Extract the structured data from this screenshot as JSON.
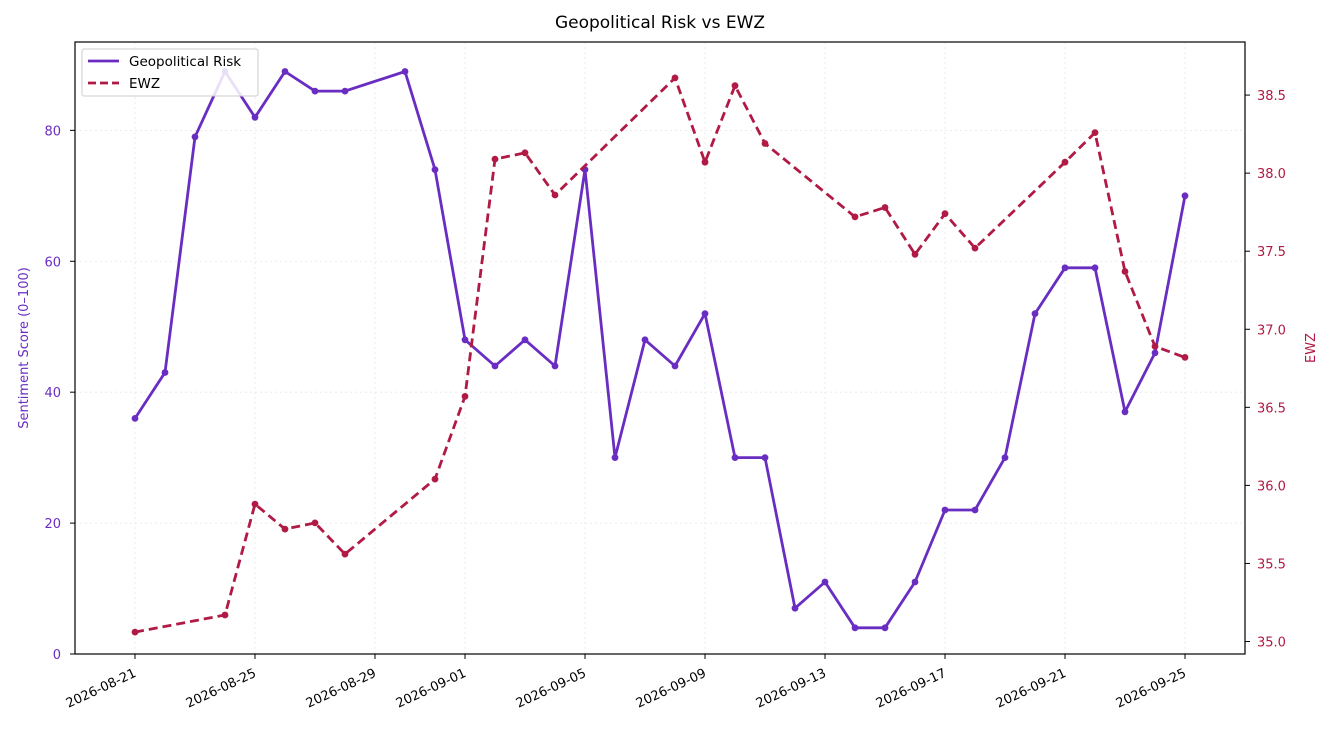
{
  "chart_data": {
    "type": "line",
    "title": "Geopolitical Risk vs EWZ",
    "xlabel": "",
    "x": [
      "2026-08-21",
      "2026-08-22",
      "2026-08-23",
      "2026-08-24",
      "2026-08-25",
      "2026-08-26",
      "2026-08-27",
      "2026-08-28",
      "2026-08-30",
      "2026-08-31",
      "2026-09-01",
      "2026-09-02",
      "2026-09-03",
      "2026-09-04",
      "2026-09-05",
      "2026-09-06",
      "2026-09-07",
      "2026-09-08",
      "2026-09-09",
      "2026-09-10",
      "2026-09-11",
      "2026-09-12",
      "2026-09-13",
      "2026-09-14",
      "2026-09-15",
      "2026-09-16",
      "2026-09-17",
      "2026-09-18",
      "2026-09-19",
      "2026-09-20",
      "2026-09-21",
      "2026-09-22",
      "2026-09-23",
      "2026-09-24",
      "2026-09-25"
    ],
    "x_ticks": [
      "2026-08-21",
      "2026-08-25",
      "2026-08-29",
      "2026-09-01",
      "2026-09-05",
      "2026-09-09",
      "2026-09-13",
      "2026-09-17",
      "2026-09-21",
      "2026-09-25"
    ],
    "x_range": [
      "2026-08-19",
      "2026-09-27"
    ],
    "series": [
      {
        "name": "Geopolitical Risk",
        "axis": "left",
        "color": "#6a2dc2",
        "style": "solid",
        "x": [
          "2026-08-21",
          "2026-08-22",
          "2026-08-23",
          "2026-08-24",
          "2026-08-25",
          "2026-08-26",
          "2026-08-27",
          "2026-08-28",
          "2026-08-30",
          "2026-08-31",
          "2026-09-01",
          "2026-09-02",
          "2026-09-03",
          "2026-09-04",
          "2026-09-05",
          "2026-09-06",
          "2026-09-07",
          "2026-09-08",
          "2026-09-09",
          "2026-09-10",
          "2026-09-11",
          "2026-09-12",
          "2026-09-13",
          "2026-09-14",
          "2026-09-15",
          "2026-09-16",
          "2026-09-17",
          "2026-09-18",
          "2026-09-19",
          "2026-09-20",
          "2026-09-21",
          "2026-09-22",
          "2026-09-23",
          "2026-09-24",
          "2026-09-25"
        ],
        "values": [
          36,
          43,
          79,
          89,
          82,
          89,
          86,
          86,
          89,
          74,
          48,
          44,
          48,
          44,
          74,
          30,
          48,
          44,
          52,
          30,
          30,
          7,
          11,
          4,
          4,
          11,
          22,
          22,
          30,
          52,
          59,
          59,
          37,
          46,
          70
        ]
      },
      {
        "name": "EWZ",
        "axis": "right",
        "color": "#b01a44",
        "style": "dashed",
        "x": [
          "2026-08-21",
          "2026-08-24",
          "2026-08-25",
          "2026-08-26",
          "2026-08-27",
          "2026-08-28",
          "2026-08-31",
          "2026-09-01",
          "2026-09-02",
          "2026-09-03",
          "2026-09-04",
          "2026-09-08",
          "2026-09-09",
          "2026-09-10",
          "2026-09-11",
          "2026-09-14",
          "2026-09-15",
          "2026-09-16",
          "2026-09-17",
          "2026-09-18",
          "2026-09-21",
          "2026-09-22",
          "2026-09-23",
          "2026-09-24",
          "2026-09-25"
        ],
        "values": [
          35.06,
          35.17,
          35.88,
          35.72,
          35.76,
          35.56,
          36.04,
          36.57,
          38.09,
          38.13,
          37.86,
          38.61,
          38.07,
          38.56,
          38.19,
          37.72,
          37.78,
          37.48,
          37.74,
          37.52,
          38.07,
          38.26,
          37.37,
          36.89,
          36.82
        ]
      }
    ],
    "y_left": {
      "label": "Sentiment Score (0–100)",
      "range": [
        0,
        93.5
      ],
      "ticks": [
        0,
        20,
        40,
        60,
        80
      ],
      "color": "#6a2dc2"
    },
    "y_right": {
      "label": "EWZ",
      "range": [
        34.92,
        38.84
      ],
      "ticks": [
        "35.0",
        "35.5",
        "36.0",
        "36.5",
        "37.0",
        "37.5",
        "38.0",
        "38.5"
      ],
      "color": "#b01a44"
    },
    "grid": true,
    "legend_position": "top-left"
  }
}
